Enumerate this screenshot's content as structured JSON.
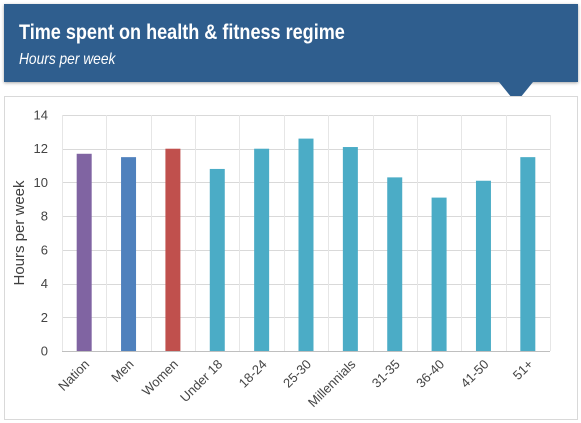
{
  "header": {
    "title": "Time spent on health & fitness regime",
    "subtitle": "Hours per week"
  },
  "chart_data": {
    "type": "bar",
    "title": "Time spent on health & fitness regime",
    "subtitle": "Hours per week",
    "xlabel": "",
    "ylabel": "Hours per week",
    "ylim": [
      0,
      14
    ],
    "yticks": [
      0,
      2,
      4,
      6,
      8,
      10,
      12,
      14
    ],
    "grid": true,
    "categories": [
      "Nation",
      "Men",
      "Women",
      "Under 18",
      "18-24",
      "25-30",
      "Millennials",
      "31-35",
      "36-40",
      "41-50",
      "51+"
    ],
    "values": [
      11.7,
      11.5,
      12.0,
      10.8,
      12.0,
      12.6,
      12.1,
      10.3,
      9.1,
      10.1,
      11.5
    ],
    "colors": [
      "#8064a2",
      "#4f81bd",
      "#c0504d",
      "#4bacc6",
      "#4bacc6",
      "#4bacc6",
      "#4bacc6",
      "#4bacc6",
      "#4bacc6",
      "#4bacc6",
      "#4bacc6"
    ]
  }
}
